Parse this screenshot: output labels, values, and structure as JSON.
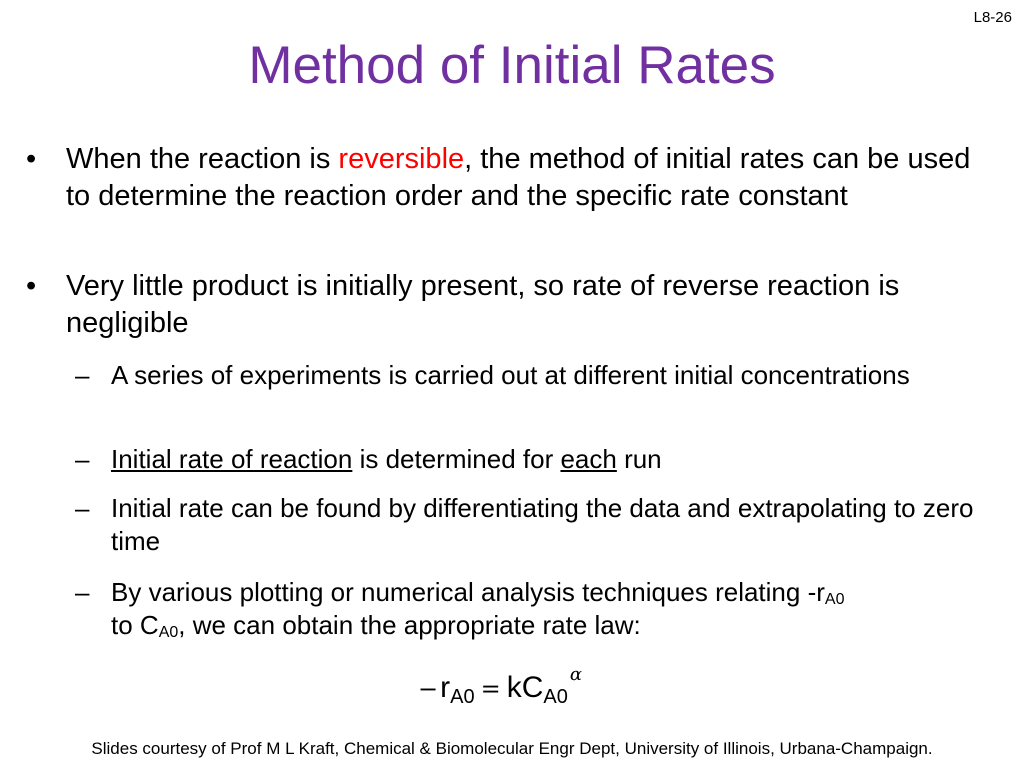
{
  "slide_number": "L8-26",
  "title": "Method of Initial Rates",
  "bullet_marker": "•",
  "dash_marker": "–",
  "bullet1": {
    "before": "When the reaction is ",
    "highlight": "reversible",
    "after": ", the method of initial rates can be used to determine the reaction order and the specific rate constant"
  },
  "bullet2": {
    "text": "Very little product is initially present, so rate of reverse reaction is negligible"
  },
  "sub1": {
    "text": "A series of experiments is carried out at different initial concentrations"
  },
  "sub2": {
    "underlined1": "Initial rate of reaction",
    "middle": " is determined for ",
    "underlined2": "each",
    "after": " run"
  },
  "sub3": {
    "text": "Initial rate can be found by differentiating the data and extrapolating to zero time"
  },
  "sub4": {
    "part1": "By various plotting or numerical analysis techniques relating -r",
    "sub_a": "A0",
    "part2": " to C",
    "sub_b": "A0",
    "part3": ", we can obtain the appropriate rate law:"
  },
  "equation": {
    "minus": "−",
    "r": "r",
    "r_sub": "A0",
    "equals": "=",
    "k": "k",
    "c": "C",
    "c_sub": "A0",
    "exponent": "α"
  },
  "footer": "Slides courtesy of Prof M L Kraft, Chemical & Biomolecular Engr Dept, University of Illinois, Urbana-Champaign."
}
